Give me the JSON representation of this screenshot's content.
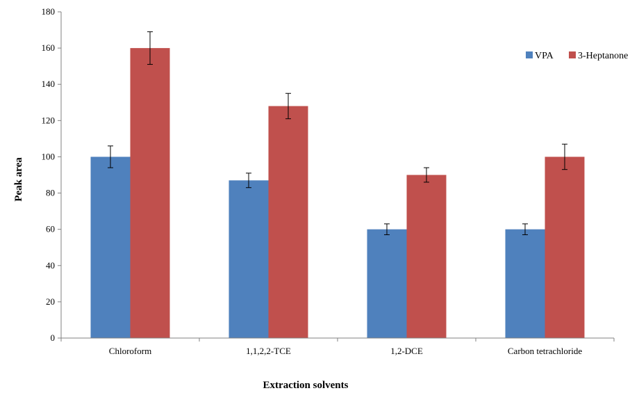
{
  "chart_data": {
    "type": "bar",
    "title": "",
    "xlabel": "Extraction solvents",
    "ylabel": "Peak area",
    "categories": [
      "Chloroform",
      "1,1,2,2-TCE",
      "1,2-DCE",
      "Carbon tetrachloride"
    ],
    "ylim": [
      0,
      180
    ],
    "yticks": [
      0,
      20,
      40,
      60,
      80,
      100,
      120,
      140,
      160,
      180
    ],
    "grid": false,
    "legend_position": "top-right",
    "series": [
      {
        "name": "VPA",
        "color": "#4F81BD",
        "values": [
          100,
          87,
          60,
          60
        ],
        "errors": [
          6,
          4,
          3,
          3
        ]
      },
      {
        "name": "3-Heptanone",
        "color": "#C0504D",
        "values": [
          160,
          128,
          90,
          100
        ],
        "errors": [
          9,
          7,
          4,
          7
        ]
      }
    ]
  }
}
